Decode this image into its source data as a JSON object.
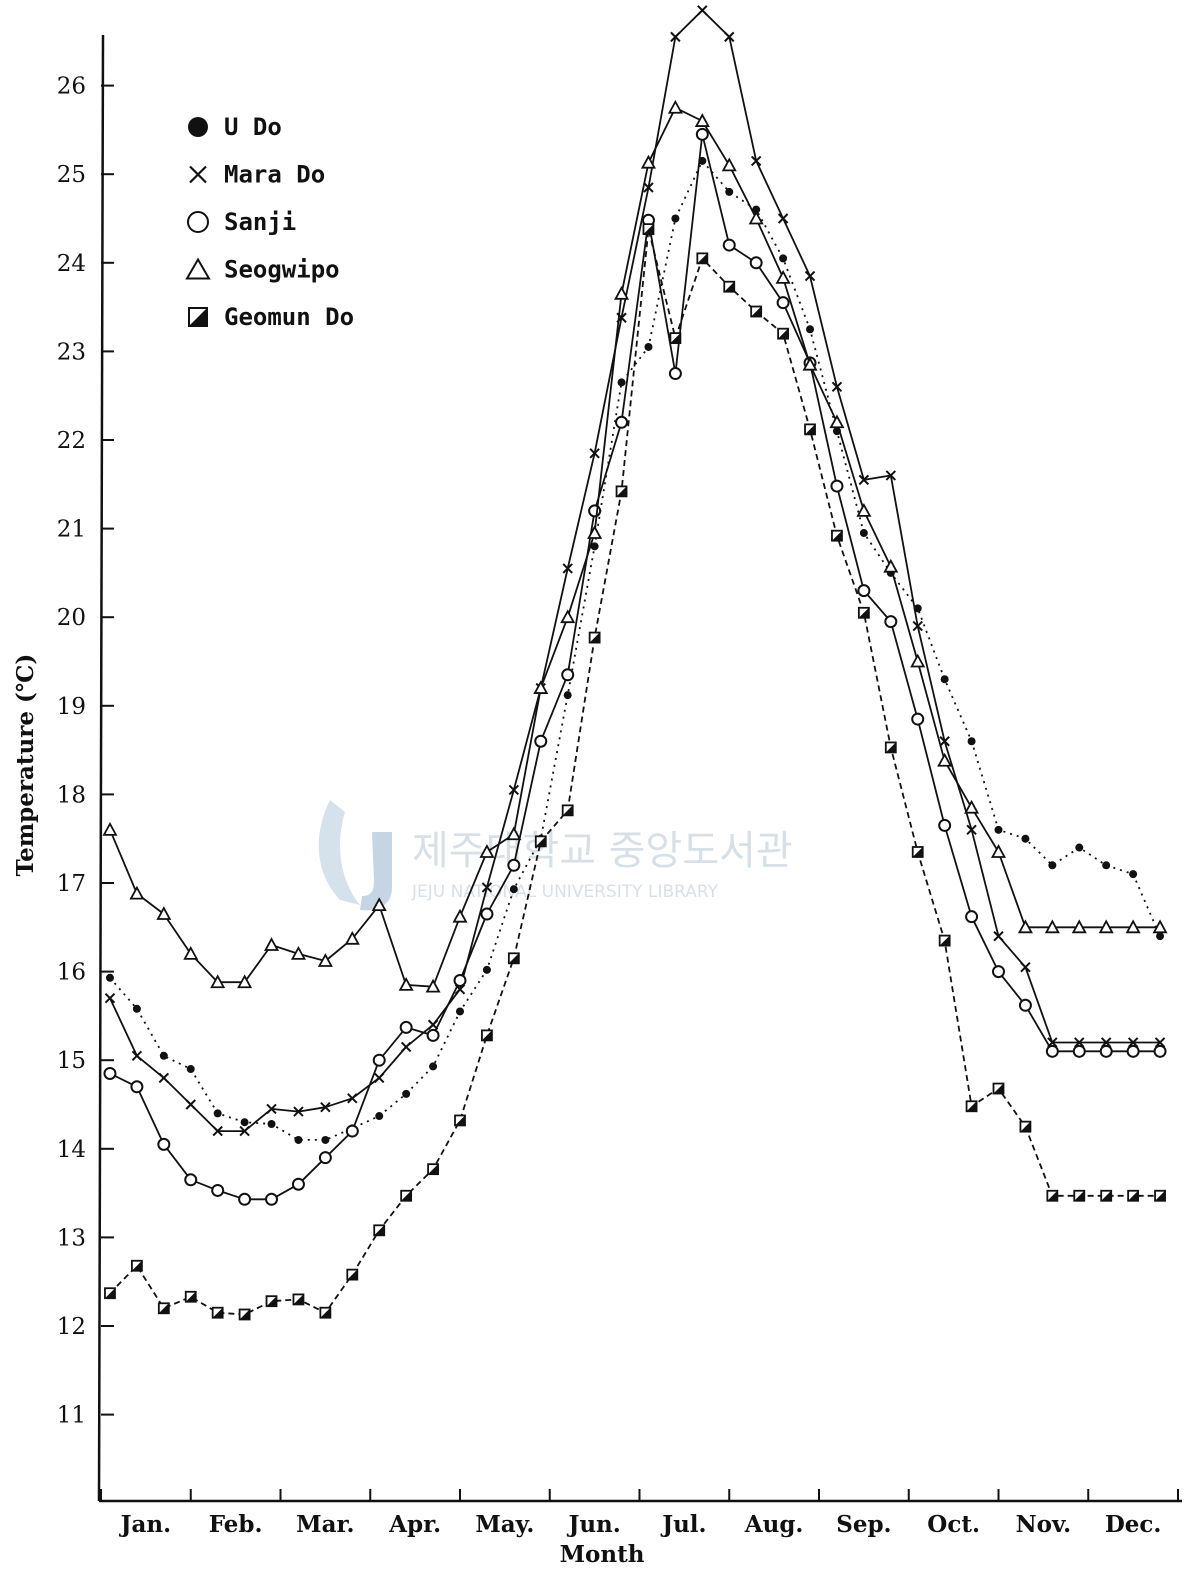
{
  "chart_data": {
    "type": "line",
    "title": "",
    "xlabel": "Month",
    "ylabel": "Temperature (℃)",
    "ylim": [
      10,
      26.8
    ],
    "yticks": [
      11,
      12,
      13,
      14,
      15,
      16,
      17,
      18,
      19,
      20,
      21,
      22,
      23,
      24,
      25,
      26
    ],
    "xlim": [
      0,
      12
    ],
    "months": [
      "Jan.",
      "Feb.",
      "Mar.",
      "Apr.",
      "May.",
      "Jun.",
      "Jul.",
      "Aug.",
      "Sep.",
      "Oct.",
      "Nov.",
      "Dec."
    ],
    "grid": false,
    "legend_position": "top-left",
    "series": [
      {
        "name": "U Do",
        "marker": "filled-circle",
        "line": "dotted",
        "x": [
          0.1,
          0.4,
          0.7,
          1.0,
          1.3,
          1.6,
          1.9,
          2.2,
          2.5,
          2.8,
          3.1,
          3.4,
          3.7,
          4.0,
          4.3,
          4.6,
          4.9,
          5.2,
          5.5,
          5.8,
          6.1,
          6.4,
          6.7,
          7.0,
          7.3,
          7.6,
          7.9,
          8.2,
          8.5,
          8.8,
          9.1,
          9.4,
          9.7,
          10.0,
          10.3,
          10.6,
          10.9,
          11.2,
          11.5,
          11.8
        ],
        "values": [
          15.93,
          15.58,
          15.05,
          14.9,
          14.4,
          14.3,
          14.28,
          14.1,
          14.1,
          14.23,
          14.37,
          14.62,
          14.93,
          15.55,
          16.02,
          16.93,
          17.5,
          19.12,
          20.8,
          22.65,
          23.05,
          24.5,
          25.15,
          24.8,
          24.6,
          24.05,
          23.25,
          22.1,
          20.95,
          20.5,
          20.1,
          19.3,
          18.6,
          17.6,
          17.5,
          17.2,
          17.4,
          17.2,
          17.1,
          16.4
        ]
      },
      {
        "name": "Mara Do",
        "marker": "x",
        "line": "solid",
        "x": [
          0.1,
          0.4,
          0.7,
          1.0,
          1.3,
          1.6,
          1.9,
          2.2,
          2.5,
          2.8,
          3.1,
          3.4,
          3.7,
          4.0,
          4.3,
          4.6,
          4.9,
          5.2,
          5.5,
          5.8,
          6.1,
          6.4,
          6.7,
          7.0,
          7.3,
          7.6,
          7.9,
          8.2,
          8.5,
          8.8,
          9.1,
          9.4,
          9.7,
          10.0,
          10.3,
          10.6,
          10.9,
          11.2,
          11.5,
          11.8
        ],
        "values": [
          15.7,
          15.05,
          14.8,
          14.5,
          14.2,
          14.2,
          14.45,
          14.42,
          14.47,
          14.57,
          14.8,
          15.15,
          15.4,
          15.8,
          16.95,
          18.05,
          19.2,
          20.55,
          21.85,
          23.38,
          24.85,
          26.55,
          26.85,
          26.55,
          25.15,
          24.5,
          23.85,
          22.6,
          21.55,
          21.6,
          19.9,
          18.6,
          17.6,
          16.4,
          16.05,
          15.2,
          15.2,
          15.2,
          15.2,
          15.2
        ]
      },
      {
        "name": "Sanji",
        "marker": "open-circle",
        "line": "solid",
        "x": [
          0.1,
          0.4,
          0.7,
          1.0,
          1.3,
          1.6,
          1.9,
          2.2,
          2.5,
          2.8,
          3.1,
          3.4,
          3.7,
          4.0,
          4.3,
          4.6,
          4.9,
          5.2,
          5.5,
          5.8,
          6.1,
          6.4,
          6.7,
          7.0,
          7.3,
          7.6,
          7.9,
          8.2,
          8.5,
          8.8,
          9.1,
          9.4,
          9.7,
          10.0,
          10.3,
          10.6,
          10.9,
          11.2,
          11.5,
          11.8
        ],
        "values": [
          14.85,
          14.7,
          14.05,
          13.65,
          13.53,
          13.43,
          13.43,
          13.6,
          13.9,
          14.2,
          15.0,
          15.37,
          15.28,
          15.9,
          16.65,
          17.2,
          18.6,
          19.35,
          21.2,
          22.2,
          24.48,
          22.75,
          25.45,
          24.2,
          24.0,
          23.55,
          22.87,
          21.48,
          20.3,
          19.95,
          18.85,
          17.65,
          16.62,
          16.0,
          15.62,
          15.1,
          15.1,
          15.1,
          15.1,
          15.1
        ]
      },
      {
        "name": "Seogwipo",
        "marker": "open-triangle",
        "line": "solid",
        "x": [
          0.1,
          0.4,
          0.7,
          1.0,
          1.3,
          1.6,
          1.9,
          2.2,
          2.5,
          2.8,
          3.1,
          3.4,
          3.7,
          4.0,
          4.3,
          4.6,
          4.9,
          5.2,
          5.5,
          5.8,
          6.1,
          6.4,
          6.7,
          7.0,
          7.3,
          7.6,
          7.9,
          8.2,
          8.5,
          8.8,
          9.1,
          9.4,
          9.7,
          10.0,
          10.3,
          10.6,
          10.9,
          11.2,
          11.5,
          11.8
        ],
        "values": [
          17.6,
          16.88,
          16.65,
          16.2,
          15.88,
          15.88,
          16.3,
          16.2,
          16.12,
          16.37,
          16.75,
          15.85,
          15.83,
          16.62,
          17.35,
          17.55,
          19.2,
          20.0,
          20.95,
          23.65,
          25.13,
          25.75,
          25.6,
          25.1,
          24.5,
          23.83,
          22.85,
          22.2,
          21.2,
          20.57,
          19.5,
          18.38,
          17.85,
          17.35,
          16.5,
          16.5,
          16.5,
          16.5,
          16.5,
          16.5
        ]
      },
      {
        "name": "Geomun Do",
        "marker": "half-filled-square",
        "line": "dashed",
        "x": [
          0.1,
          0.4,
          0.7,
          1.0,
          1.3,
          1.6,
          1.9,
          2.2,
          2.5,
          2.8,
          3.1,
          3.4,
          3.7,
          4.0,
          4.3,
          4.6,
          4.9,
          5.2,
          5.5,
          5.8,
          6.1,
          6.4,
          6.7,
          7.0,
          7.3,
          7.6,
          7.9,
          8.2,
          8.5,
          8.8,
          9.1,
          9.4,
          9.7,
          10.0,
          10.3,
          10.6,
          10.9,
          11.2,
          11.5,
          11.8
        ],
        "values": [
          12.37,
          12.68,
          12.2,
          12.33,
          12.15,
          12.13,
          12.28,
          12.3,
          12.15,
          12.58,
          13.08,
          13.47,
          13.77,
          14.32,
          15.28,
          16.15,
          17.47,
          17.82,
          19.77,
          21.42,
          24.38,
          23.15,
          24.05,
          23.73,
          23.45,
          23.2,
          22.12,
          20.92,
          20.05,
          18.53,
          17.35,
          16.35,
          14.48,
          14.68,
          14.25,
          13.47,
          13.47,
          13.47,
          13.47,
          13.47
        ]
      }
    ]
  },
  "watermark": {
    "korean": "제주대학교 중앙도서관",
    "english": "JEJU NATIONAL UNIVERSITY LIBRARY",
    "logo_text": "JNU"
  }
}
